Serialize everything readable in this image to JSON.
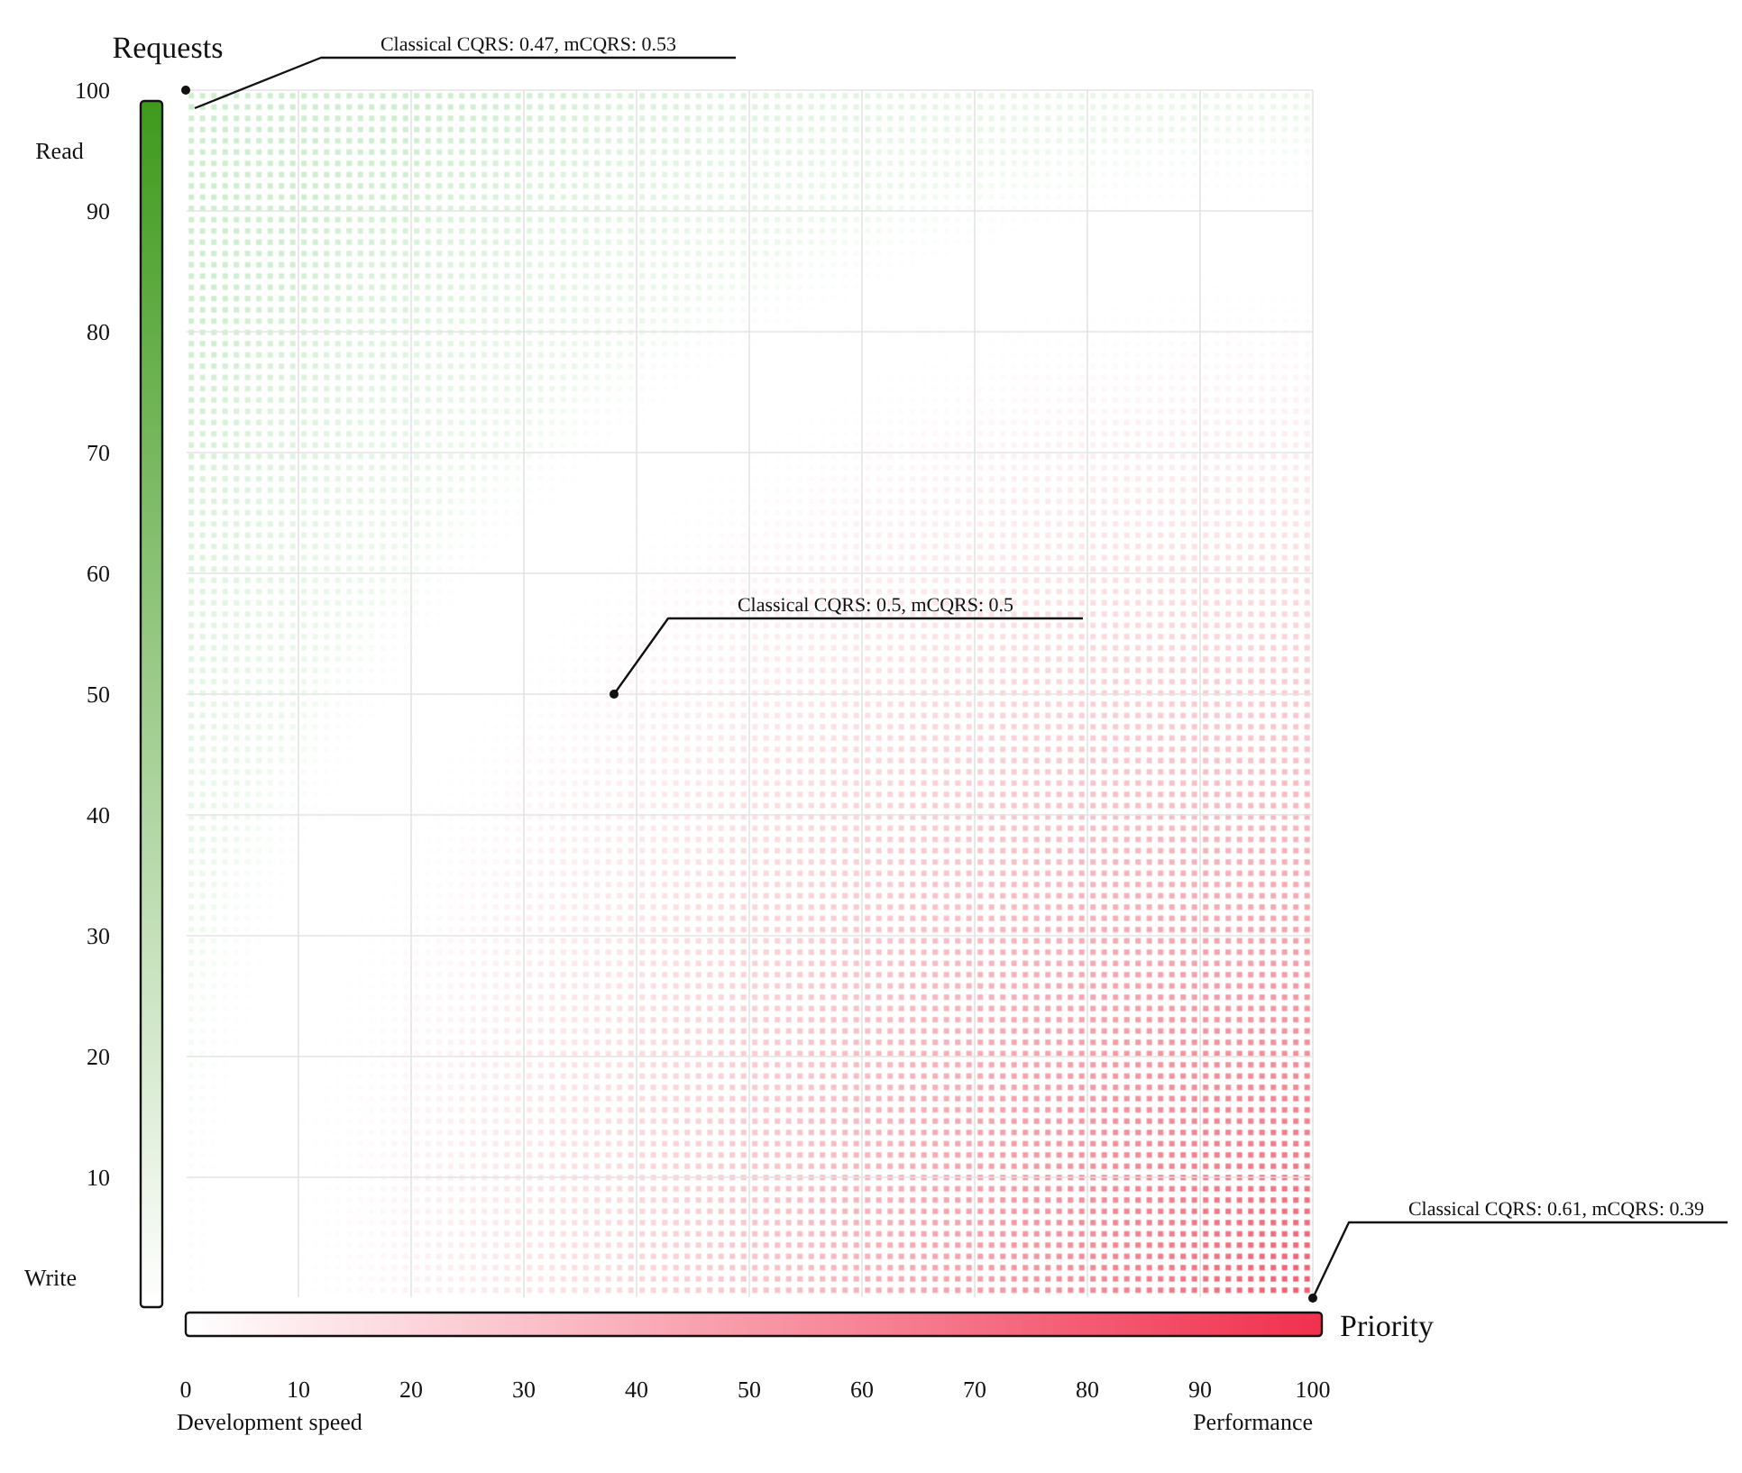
{
  "chart_data": {
    "type": "scatter",
    "xlabel": "Priority",
    "ylabel": "Requests",
    "xlim": [
      0,
      100
    ],
    "ylim": [
      0,
      100
    ],
    "xticks": [
      0,
      10,
      20,
      30,
      40,
      50,
      60,
      70,
      80,
      90,
      100
    ],
    "yticks": [
      10,
      20,
      30,
      40,
      50,
      60,
      70,
      80,
      90,
      100
    ],
    "grid": true,
    "marker": "circle",
    "x": [
      0,
      38,
      100
    ],
    "values": [
      100,
      50,
      0
    ],
    "value_labels": [
      "Classical CQRS: 0.47, mCQRS: 0.53",
      "Classical CQRS: 0.5, mCQRS: 0.5",
      "Classical CQRS: 0.61, mCQRS: 0.39"
    ],
    "annotations": [
      "Read",
      "Write",
      "Development speed",
      "Performance"
    ]
  }
}
